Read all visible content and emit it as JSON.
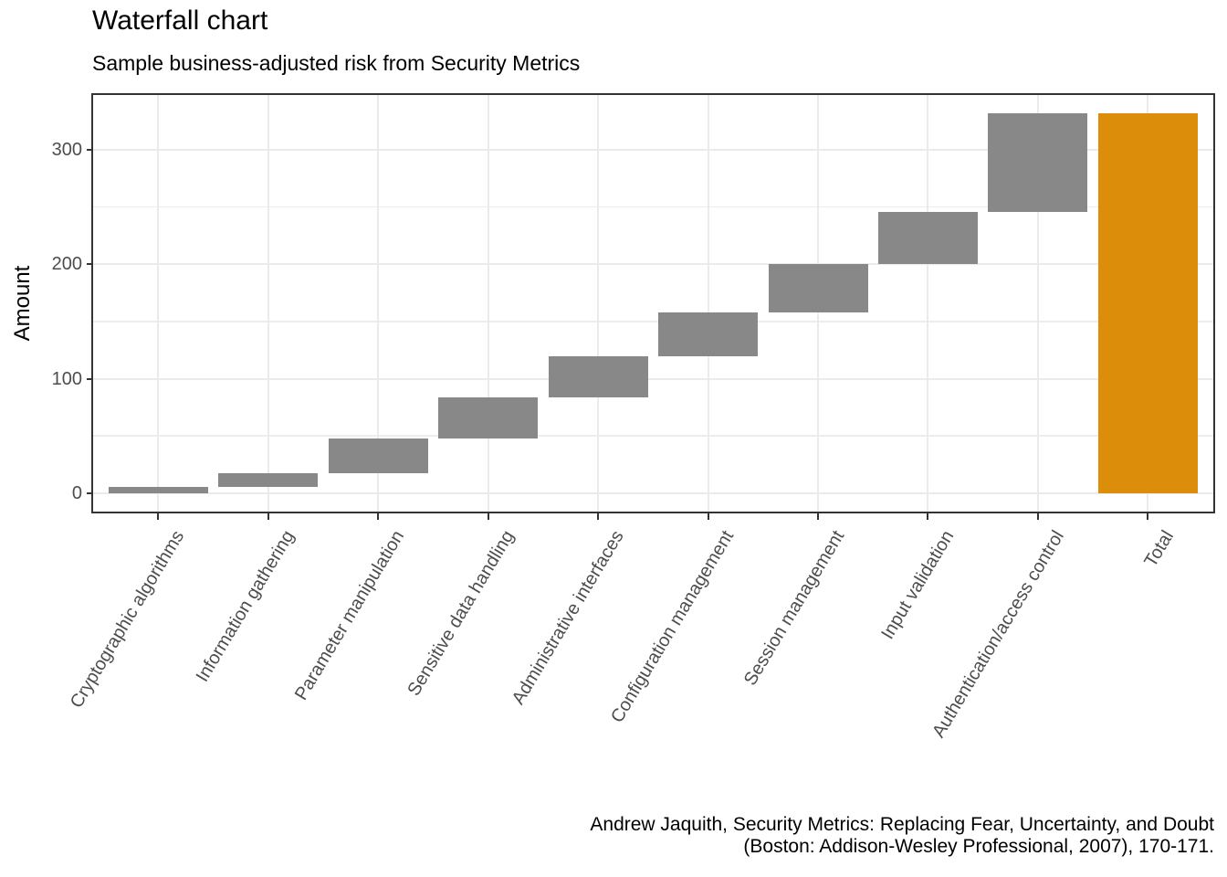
{
  "title": "Waterfall chart",
  "subtitle": "Sample business-adjusted risk from Security Metrics",
  "caption": {
    "line1": "Andrew Jaquith, Security Metrics: Replacing Fear, Uncertainty, and Doubt",
    "line2": "(Boston: Addison-Wesley Professional, 2007), 170-171."
  },
  "chart_data": {
    "type": "bar",
    "subtype": "waterfall",
    "title": "Waterfall chart",
    "subtitle": "Sample business-adjusted risk from Security Metrics",
    "xlabel": "",
    "ylabel": "Amount",
    "categories": [
      "Cryptographic algorithms",
      "Information gathering",
      "Parameter manipulation",
      "Sensitive data handling",
      "Administrative interfaces",
      "Configuration management",
      "Session management",
      "Input validation",
      "Authentication/access control",
      "Total"
    ],
    "values": [
      5.3,
      12.2,
      30.7,
      35.2,
      36.0,
      38.6,
      41.8,
      45.4,
      86.2
    ],
    "cumulative": [
      5.3,
      17.5,
      48.2,
      83.4,
      119.4,
      158.0,
      199.8,
      245.2,
      331.4
    ],
    "total": 331.4,
    "total_label": "Total",
    "yticks": [
      0,
      100,
      200,
      300
    ],
    "yticks_minor": [
      50,
      150,
      250
    ],
    "ylim": [
      0,
      350
    ],
    "grid": true,
    "legend_position": "none",
    "colors": {
      "segment_bar": "#888888",
      "total_bar": "#DC8E0B",
      "gridline": "#EBEBEB",
      "panel_border": "#333333",
      "tick_text": "#4D4D4D",
      "text": "#000000"
    },
    "caption": "Andrew Jaquith, Security Metrics: Replacing Fear, Uncertainty, and Doubt (Boston: Addison-Wesley Professional, 2007), 170-171."
  }
}
